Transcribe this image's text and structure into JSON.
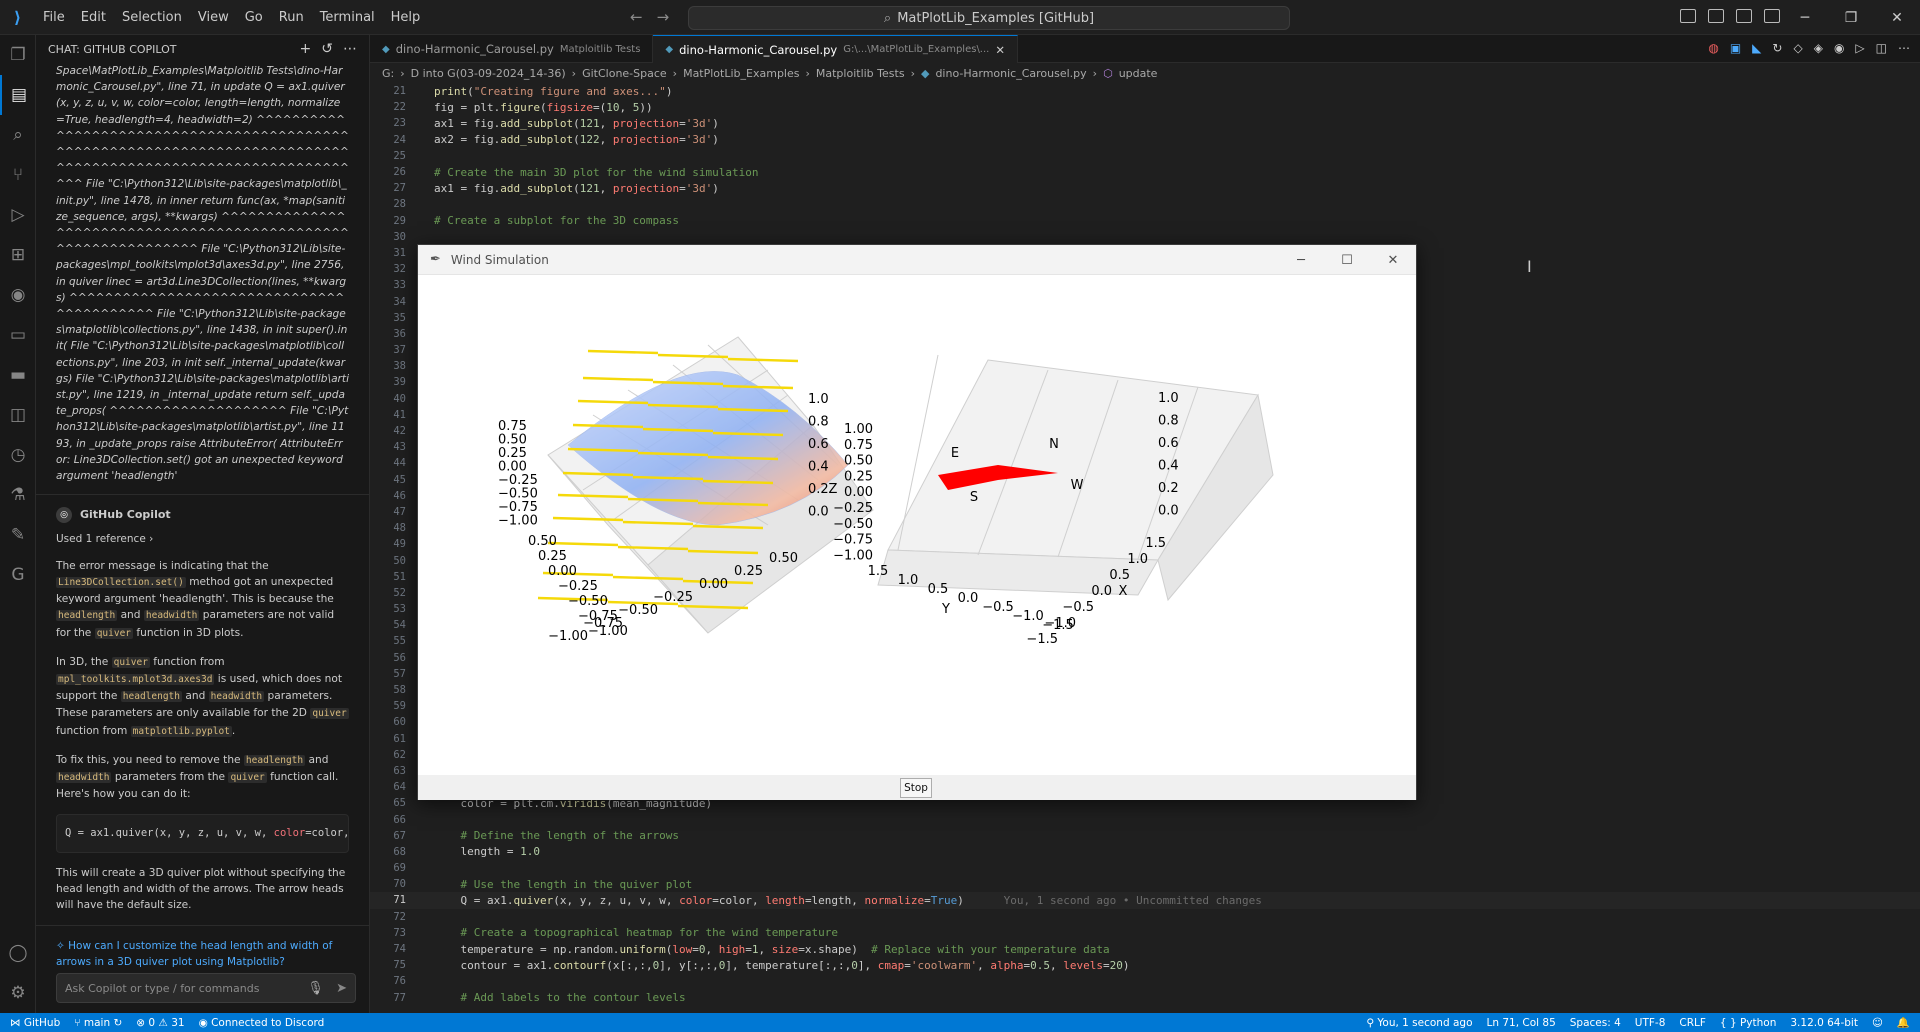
{
  "titlebar": {
    "menu": [
      "File",
      "Edit",
      "Selection",
      "View",
      "Go",
      "Run",
      "Terminal",
      "Help"
    ],
    "search": "MatPlotLib_Examples [GitHub]"
  },
  "chat": {
    "header": "CHAT: GITHUB COPILOT",
    "error_text": "Space\\MatPlotLib_Examples\\Matploitlib Tests\\dino-Harmonic_Carousel.py\", line 71, in update Q = ax1.quiver(x, y, z, u, v, w, color=color, length=length, normalize=True, headlength=4, headwidth=2) ^^^^^^^^^^^^^^^^^^^^^^^^^^^^^^^^^^^^^^^^^^^^^^^^^^^^^^^^^^^^^^^^^^^^^^^^^^^^^^^^^^^^^^^^^^^^^^^^^^^^^^^^^^^^^^^^ File \"C:\\Python312\\Lib\\site-packages\\matplotlib\\_init.py\", line 1478, in inner return func(ax, *map(sanitize_sequence, args), **kwargs) ^^^^^^^^^^^^^^^^^^^^^^^^^^^^^^^^^^^^^^^^^^^^^^^^^^^^^^^^^^^^^^^ File \"C:\\Python312\\Lib\\site-packages\\mpl_toolkits\\mplot3d\\axes3d.py\", line 2756, in quiver linec = art3d.Line3DCollection(lines, **kwargs) ^^^^^^^^^^^^^^^^^^^^^^^^^^^^^^^^^^^^^^^^^^ File \"C:\\Python312\\Lib\\site-packages\\matplotlib\\collections.py\", line 1438, in init super().init( File \"C:\\Python312\\Lib\\site-packages\\matplotlib\\collections.py\", line 203, in init self._internal_update(kwargs) File \"C:\\Python312\\Lib\\site-packages\\matplotlib\\artist.py\", line 1219, in _internal_update return self._update_props( ^^^^^^^^^^^^^^^^^^^^ File \"C:\\Python312\\Lib\\site-packages\\matplotlib\\artist.py\", line 1193, in _update_props raise AttributeError( AttributeError: Line3DCollection.set() got an unexpected keyword argument 'headlength'",
    "copilot_name": "GitHub Copilot",
    "used_ref": "Used 1 reference",
    "p1_a": "The error message is indicating that the ",
    "p1_code": "Line3DCollection.set()",
    "p1_b": " method got an unexpected keyword argument 'headlength'. This is because the ",
    "p1_code2": "headlength",
    "p1_c": " and ",
    "p1_code3": "headwidth",
    "p1_d": " parameters are not valid for the ",
    "p1_code4": "quiver",
    "p1_e": " function in 3D plots.",
    "p2_a": "In 3D, the ",
    "p2_code": "quiver",
    "p2_b": " function from ",
    "p2_code2": "mpl_toolkits.mplot3d.axes3d",
    "p2_c": " is used, which does not support the ",
    "p2_code3": "headlength",
    "p2_d": " and ",
    "p2_code4": "headwidth",
    "p2_e": " parameters. These parameters are only available for the 2D ",
    "p2_code5": "quiver",
    "p2_f": " function from ",
    "p2_code6": "matplotlib.pyplot",
    "p2_g": ".",
    "p3_a": "To fix this, you need to remove the ",
    "p3_code": "headlength",
    "p3_b": " and ",
    "p3_code2": "headwidth",
    "p3_c": " parameters from the ",
    "p3_code3": "quiver",
    "p3_d": " function call. Here's how you can do it:",
    "code_snippet_a": "Q = ax1.quiver(x, y, z, u, v, w, ",
    "code_snippet_kw": "color",
    "code_snippet_b": "=color,",
    "p4": "This will create a 3D quiver plot without specifying the head length and width of the arrows. The arrow heads will have the default size.",
    "followup": "How can I customize the head length and width of arrows in a 3D quiver plot using Matplotlib?",
    "ask_placeholder": "Ask Copilot or type / for commands"
  },
  "editor": {
    "tab1_name": "dino-Harmonic_Carousel.py",
    "tab1_desc": "Matploitlib Tests",
    "tab2_name": "dino-Harmonic_Carousel.py",
    "tab2_desc": "G:\\...\\MatPlotLib_Examples\\...",
    "breadcrumb": [
      "G:",
      "D into G(03-09-2024_14-36)",
      "GitClone-Space",
      "MatPlotLib_Examples",
      "Matploitlib Tests",
      "dino-Harmonic_Carousel.py",
      "update"
    ],
    "ghost_text": "You, 1 second ago • Uncommitted changes"
  },
  "mpl_window": {
    "title": "Wind Simulation",
    "stop_label": "Stop",
    "left_plot": {
      "z_ticks": [
        "0.75",
        "0.50",
        "0.25",
        "0.00",
        "−0.25",
        "−0.50",
        "−0.75",
        "−1.00"
      ],
      "y_ticks": [
        "0.50",
        "0.25",
        "0.00",
        "−0.25",
        "−0.50",
        "−0.75",
        "−1.00"
      ],
      "x_ticks": [
        "0.50",
        "0.25",
        "0.00",
        "−0.25",
        "−0.50",
        "−0.75",
        "−1.00"
      ],
      "right_ticks": [
        "1.0",
        "0.8",
        "0.6",
        "0.4",
        "0.2",
        "0.0"
      ]
    },
    "right_plot": {
      "z_label": "Z",
      "z_ticks": [
        "1.00",
        "0.75",
        "0.50",
        "0.25",
        "0.00",
        "−0.25",
        "−0.50",
        "−0.75",
        "−1.00"
      ],
      "y_label": "Y",
      "y_ticks": [
        "1.5",
        "1.0",
        "0.5",
        "0.0",
        "−0.5",
        "−1.0",
        "−1.5"
      ],
      "x_label": "X",
      "x_ticks": [
        "1.5",
        "1.0",
        "0.5",
        "0.0",
        "−0.5",
        "−1.0",
        "−1.5"
      ],
      "right_ticks": [
        "1.0",
        "0.8",
        "0.6",
        "0.4",
        "0.2",
        "0.0"
      ],
      "compass": [
        "N",
        "E",
        "S",
        "W"
      ]
    }
  },
  "statusbar": {
    "github": "GitHub",
    "branch": "main",
    "errors": "0",
    "warnings": "31",
    "discord": "Connected to Discord",
    "blame": "You, 1 second ago",
    "position": "Ln 71, Col 85",
    "spaces": "Spaces: 4",
    "encoding": "UTF-8",
    "eol": "CRLF",
    "language": "Python",
    "interpreter": "3.12.0 64-bit"
  }
}
